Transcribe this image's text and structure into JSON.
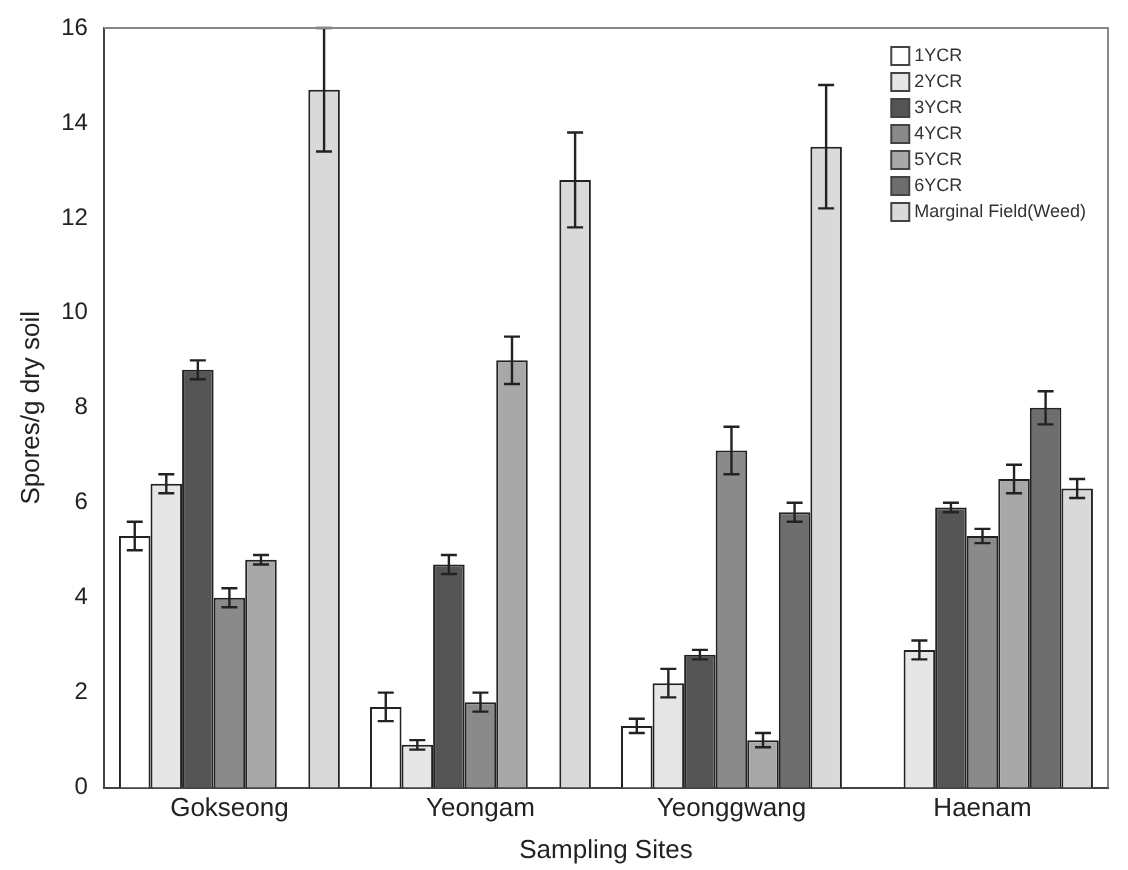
{
  "chart_data": {
    "type": "bar",
    "xlabel": "Sampling Sites",
    "ylabel": "Spores/g dry soil",
    "categories": [
      "Gokseong",
      "Yeongam",
      "Yeonggwang",
      "Haenam"
    ],
    "series": [
      {
        "name": "1YCR",
        "color": "#ffffff",
        "values": [
          5.3,
          1.7,
          1.3,
          null
        ],
        "errors": [
          0.3,
          0.3,
          0.15,
          null
        ]
      },
      {
        "name": "2YCR",
        "color": "#e6e6e6",
        "values": [
          6.4,
          0.9,
          2.2,
          2.9
        ],
        "errors": [
          0.2,
          0.1,
          0.3,
          0.2
        ]
      },
      {
        "name": "3YCR",
        "color": "#555555",
        "values": [
          8.8,
          4.7,
          2.8,
          5.9
        ],
        "errors": [
          0.2,
          0.2,
          0.1,
          0.1
        ]
      },
      {
        "name": "4YCR",
        "color": "#8a8a8a",
        "values": [
          4.0,
          1.8,
          7.1,
          5.3
        ],
        "errors": [
          0.2,
          0.2,
          0.5,
          0.15
        ]
      },
      {
        "name": "5YCR",
        "color": "#a8a8a8",
        "values": [
          4.8,
          9.0,
          1.0,
          6.5
        ],
        "errors": [
          0.1,
          0.5,
          0.15,
          0.3
        ]
      },
      {
        "name": "6YCR",
        "color": "#6e6e6e",
        "values": [
          null,
          null,
          5.8,
          8.0
        ],
        "errors": [
          null,
          null,
          0.2,
          0.35
        ]
      },
      {
        "name": "Marginal Field(Weed)",
        "color": "#d9d9d9",
        "values": [
          14.7,
          12.8,
          13.5,
          6.3
        ],
        "errors": [
          1.3,
          1.0,
          1.3,
          0.2
        ]
      }
    ],
    "ylim": [
      0,
      16
    ],
    "yticks": [
      0,
      2,
      4,
      6,
      8,
      10,
      12,
      14,
      16
    ],
    "grid": false,
    "legend": "top right"
  }
}
